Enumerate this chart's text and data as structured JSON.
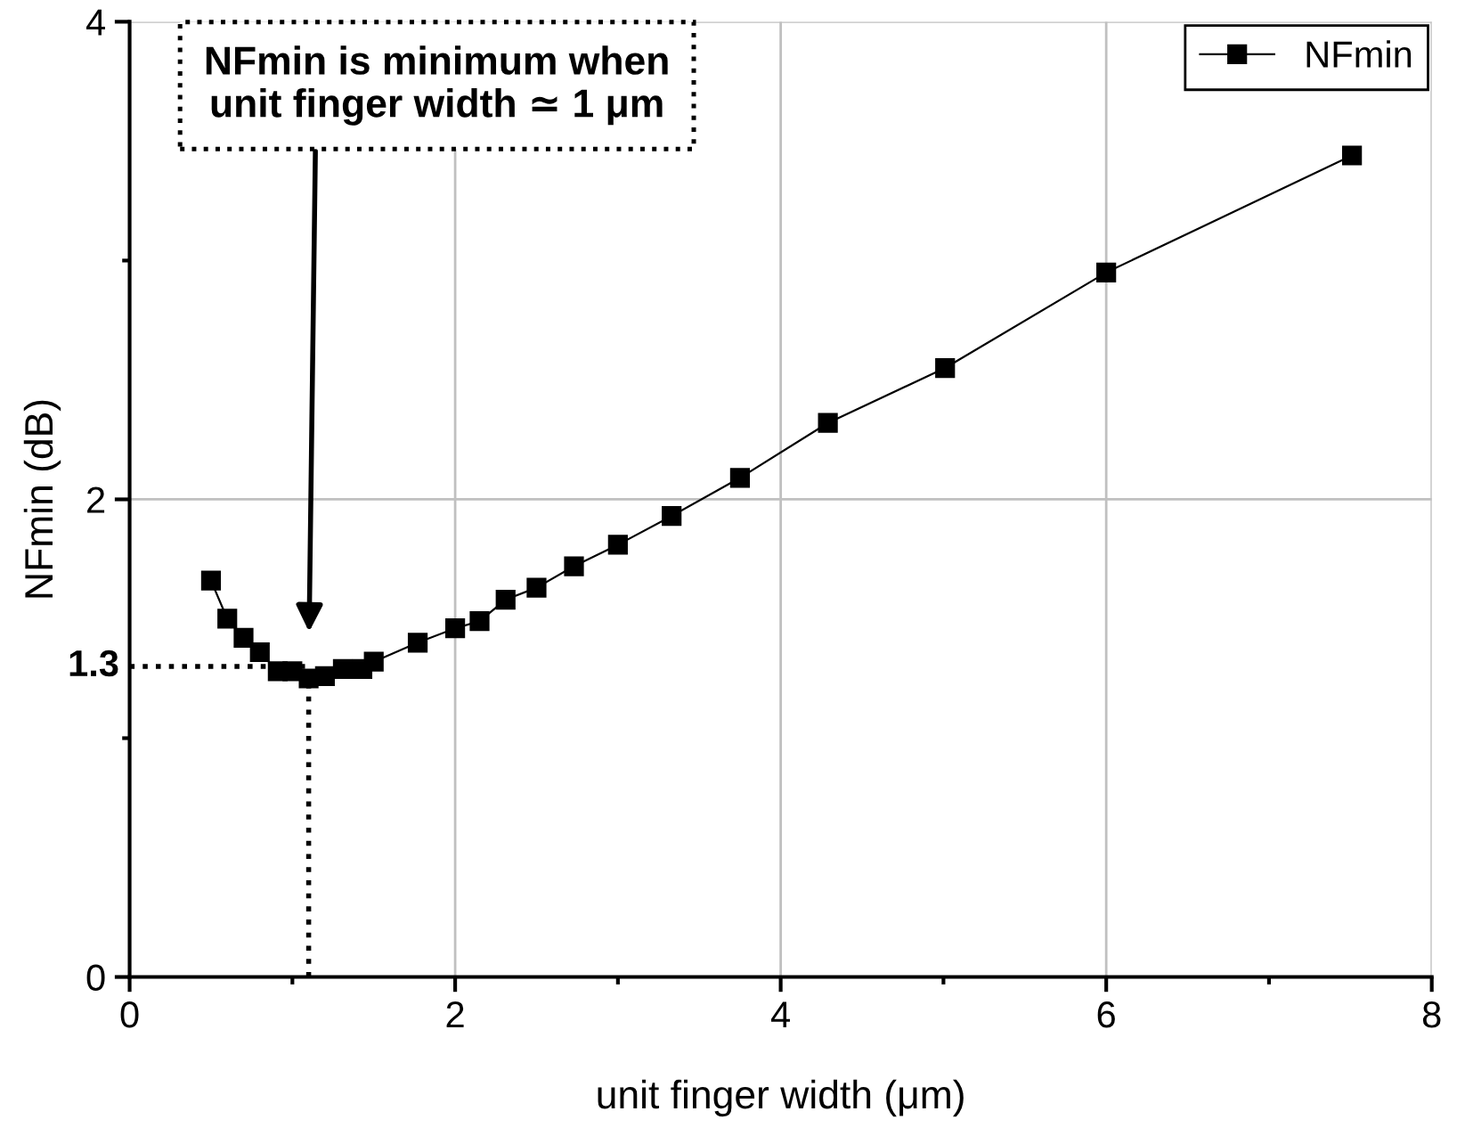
{
  "chart_data": {
    "type": "line",
    "xlabel": "unit finger width (μm)",
    "ylabel": "NFmin (dB)",
    "x": [
      0.5,
      0.6,
      0.7,
      0.8,
      0.91,
      1.0,
      1.1,
      1.2,
      1.31,
      1.43,
      1.5,
      1.77,
      2.0,
      2.15,
      2.31,
      2.5,
      2.73,
      3.0,
      3.33,
      3.75,
      4.29,
      5.01,
      6.0,
      7.51
    ],
    "series": [
      {
        "name": "NFmin",
        "color": "#000000",
        "values": [
          1.66,
          1.5,
          1.42,
          1.36,
          1.28,
          1.28,
          1.25,
          1.26,
          1.29,
          1.29,
          1.32,
          1.4,
          1.46,
          1.49,
          1.58,
          1.63,
          1.72,
          1.81,
          1.93,
          2.09,
          2.32,
          2.55,
          2.95,
          3.44
        ]
      }
    ],
    "xlim": [
      0,
      8
    ],
    "ylim": [
      0,
      4
    ],
    "xticks": [
      0,
      {
        "value": 1,
        "label": null
      },
      2,
      {
        "value": 3,
        "label": null
      },
      4,
      {
        "value": 5,
        "label": null
      },
      6,
      {
        "value": 7,
        "label": null
      },
      8
    ],
    "yticks": [
      0,
      {
        "value": 1,
        "label": null
      },
      2,
      {
        "value": 3,
        "label": null
      },
      4
    ],
    "ref_lines": [
      {
        "axis": "y",
        "value": 1.3,
        "label": "1.3",
        "line_style": "dotted",
        "color": "#000000"
      },
      {
        "axis": "x",
        "value": 1.1,
        "label": null,
        "line_style": "dotted",
        "color": "#000000"
      }
    ],
    "annotations": [
      "NFmin is minimum when\nunit finger width ≃ 1 μm"
    ],
    "grid": true,
    "legend": "top right",
    "marker": "square",
    "line_style": "solid"
  }
}
